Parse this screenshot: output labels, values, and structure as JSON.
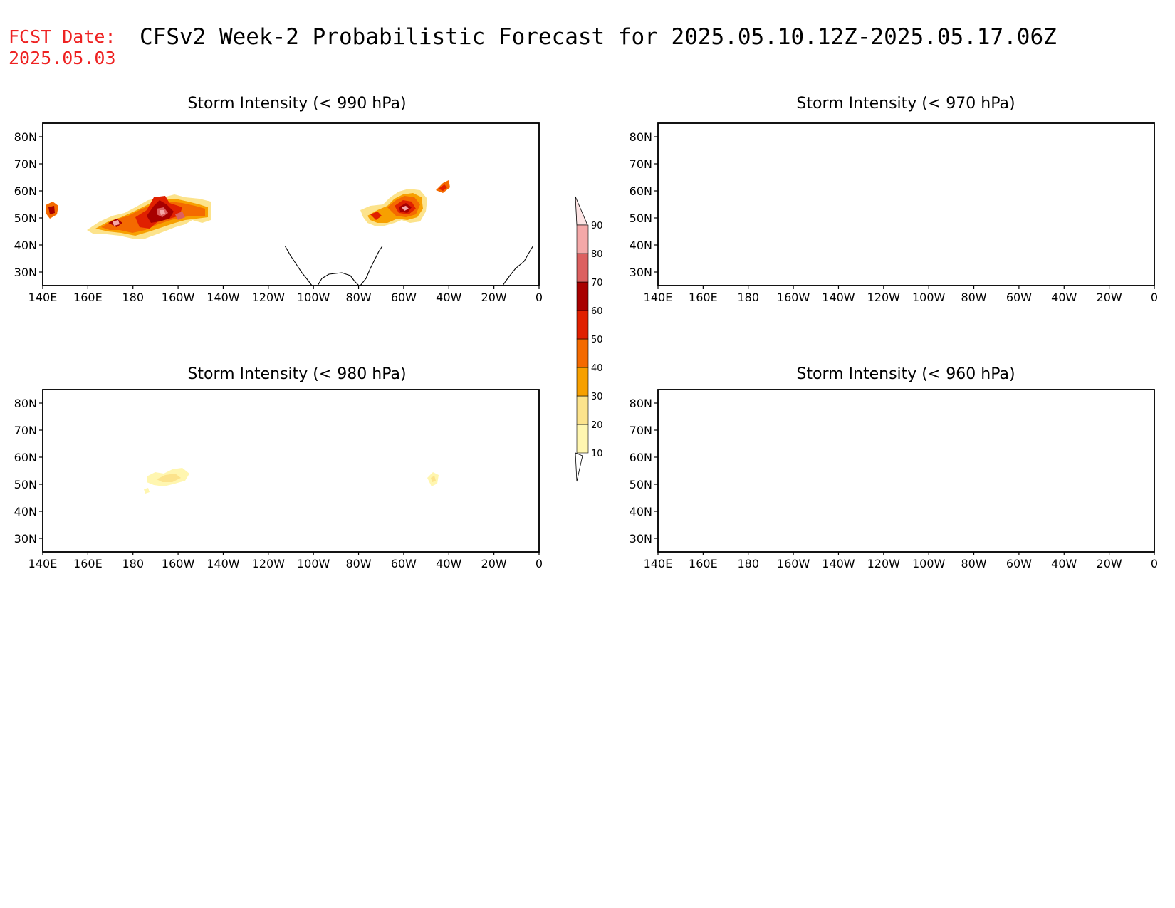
{
  "header": {
    "fcst_label": "FCST Date:",
    "fcst_date": "2025.05.03",
    "title": "CFSv2 Week-2 Probabilistic Forecast for 2025.05.10.12Z-2025.05.17.06Z"
  },
  "panels": [
    {
      "id": "p990",
      "title": "Storm Intensity (< 990 hPa)"
    },
    {
      "id": "p970",
      "title": "Storm Intensity (< 970 hPa)"
    },
    {
      "id": "p980",
      "title": "Storm Intensity (< 980 hPa)"
    },
    {
      "id": "p960",
      "title": "Storm Intensity (< 960 hPa)"
    }
  ],
  "axes": {
    "lon_ticks": [
      "140E",
      "160E",
      "180",
      "160W",
      "140W",
      "120W",
      "100W",
      "80W",
      "60W",
      "40W",
      "20W",
      "0"
    ],
    "lon_values": [
      140,
      160,
      180,
      200,
      220,
      240,
      260,
      280,
      300,
      320,
      340,
      360
    ],
    "lat_ticks": [
      "80N",
      "70N",
      "60N",
      "50N",
      "40N",
      "30N"
    ],
    "lat_values": [
      80,
      70,
      60,
      50,
      40,
      30
    ],
    "lon_range": [
      140,
      360
    ],
    "lat_range": [
      25,
      85
    ]
  },
  "colorbar": {
    "labels": [
      "10",
      "20",
      "30",
      "40",
      "50",
      "60",
      "70",
      "80",
      "90"
    ],
    "levels": [
      10,
      20,
      30,
      40,
      50,
      60,
      70,
      80,
      90
    ],
    "colors": [
      "#fff6b0",
      "#fce38c",
      "#f7a000",
      "#f46a00",
      "#e02000",
      "#a80000",
      "#dc6060",
      "#f4a8a8",
      "#fde4e4"
    ]
  },
  "probability_areas": [
    {
      "panel": "p990",
      "lon_range": [
        143,
        148
      ],
      "lat_range": [
        47,
        55
      ],
      "max_prob": 60
    },
    {
      "panel": "p990",
      "lon_range": [
        160,
        215
      ],
      "lat_range": [
        44,
        57
      ],
      "max_prob": 80
    },
    {
      "panel": "p990",
      "lon_range": [
        285,
        320
      ],
      "lat_range": [
        44,
        56
      ],
      "max_prob": 80
    },
    {
      "panel": "p990",
      "lon_range": [
        325,
        330
      ],
      "lat_range": [
        57,
        61
      ],
      "max_prob": 50
    },
    {
      "panel": "p980",
      "lon_range": [
        188,
        203
      ],
      "lat_range": [
        47,
        56
      ],
      "max_prob": 20
    },
    {
      "panel": "p980",
      "lon_range": [
        310,
        314
      ],
      "lat_range": [
        50,
        53
      ],
      "max_prob": 20
    }
  ]
}
